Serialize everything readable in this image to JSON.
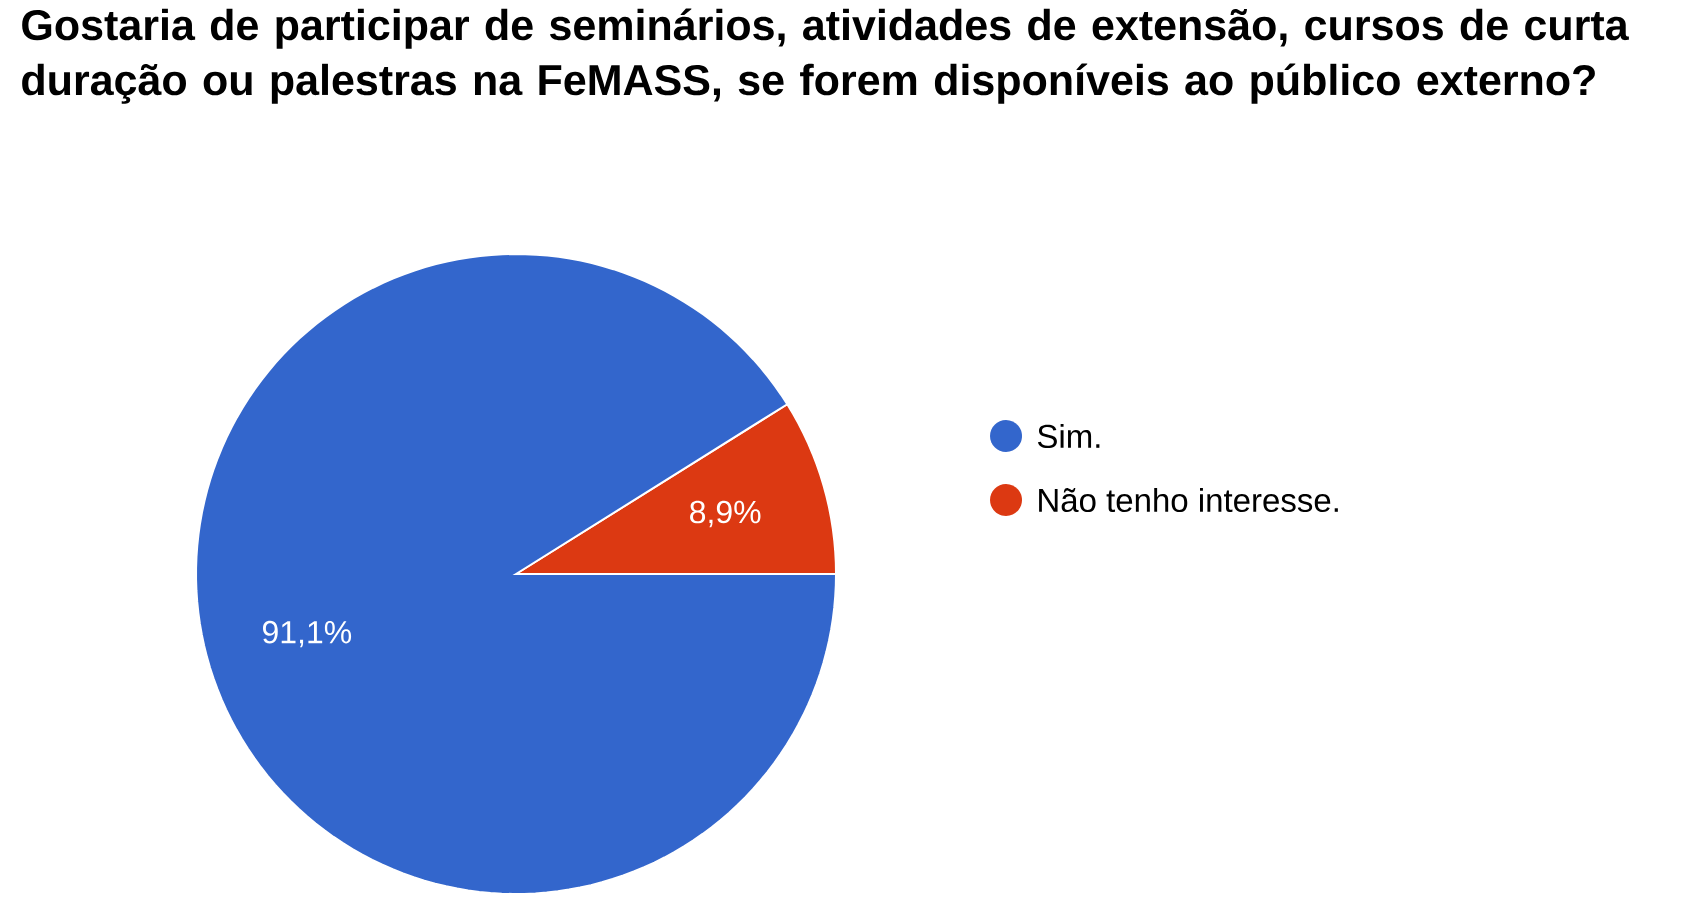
{
  "chart_data": {
    "type": "pie",
    "title": "Gostaria de participar de seminários, atividades de extensão, cursos de curta duração ou palestras na FeMASS, se forem disponíveis ao público externo?",
    "categories": [
      "Sim.",
      "Não tenho interesse."
    ],
    "values": [
      91.1,
      8.9
    ],
    "colors": [
      "#3366cc",
      "#dc3912"
    ],
    "value_labels": [
      "91,1%",
      "8,9%"
    ],
    "legend": "right"
  }
}
